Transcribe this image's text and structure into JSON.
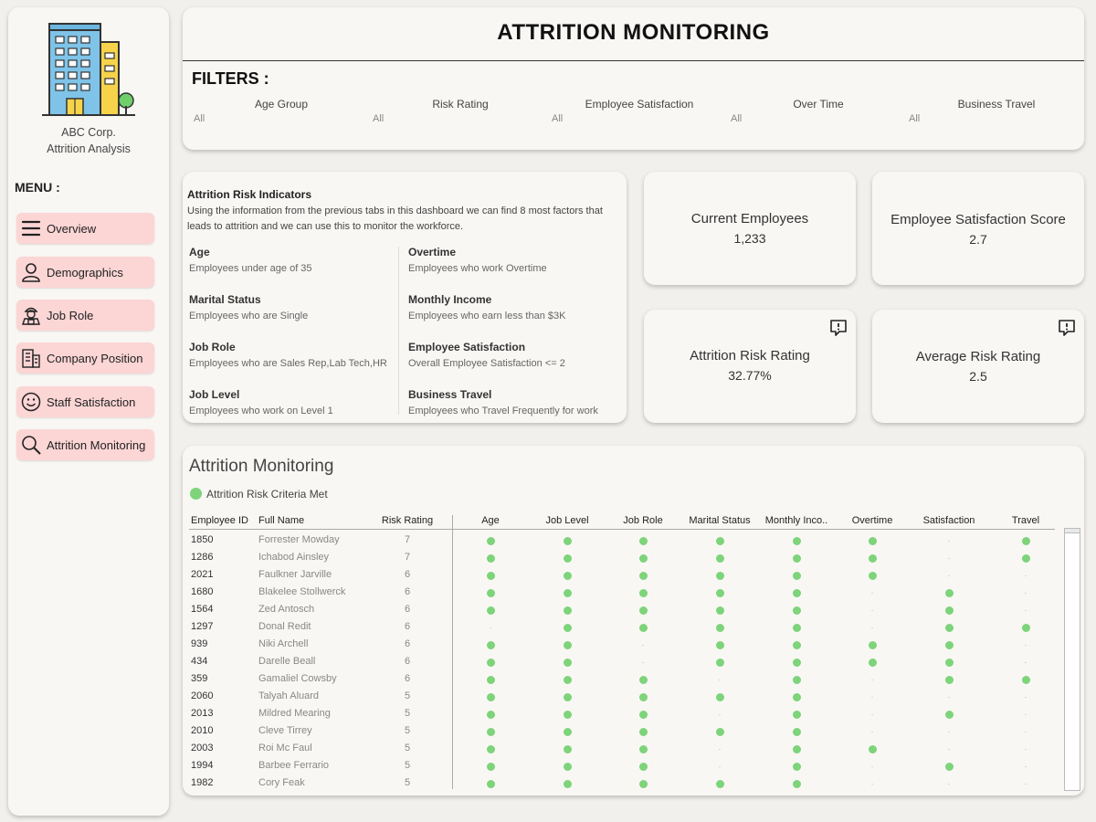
{
  "sidebar": {
    "company_line1": "ABC Corp.",
    "company_line2": "Attrition Analysis",
    "menu_title": "MENU :",
    "items": [
      {
        "label": "Overview",
        "icon": "menu-lines-icon"
      },
      {
        "label": "Demographics",
        "icon": "person-icon"
      },
      {
        "label": "Job Role",
        "icon": "worker-icon"
      },
      {
        "label": "Company Position",
        "icon": "building-icon"
      },
      {
        "label": "Staff Satisfaction",
        "icon": "smile-icon"
      },
      {
        "label": "Attrition Monitoring",
        "icon": "search-icon"
      }
    ]
  },
  "header": {
    "title": "ATTRITION MONITORING",
    "filters_title": "FILTERS :",
    "filters": [
      {
        "label": "Age Group",
        "value": "All"
      },
      {
        "label": "Risk Rating",
        "value": "All"
      },
      {
        "label": "Employee Satisfaction",
        "value": "All"
      },
      {
        "label": "Over Time",
        "value": "All"
      },
      {
        "label": "Business Travel",
        "value": "All"
      }
    ]
  },
  "risk_indicators": {
    "title": "Attrition Risk Indicators",
    "description": "Using the information from the previous tabs in this dashboard we can find 8 most factors that leads to attrition and we can use this to monitor the workforce.",
    "left": [
      {
        "name": "Age",
        "desc": "Employees under age of 35"
      },
      {
        "name": "Marital Status",
        "desc": "Employees who are Single"
      },
      {
        "name": "Job Role",
        "desc": "Employees who are Sales Rep,Lab Tech,HR"
      },
      {
        "name": "Job Level",
        "desc": "Employees who work on Level 1"
      }
    ],
    "right": [
      {
        "name": "Overtime",
        "desc": "Employees who work Overtime"
      },
      {
        "name": "Monthly Income",
        "desc": "Employees who earn less than $3K"
      },
      {
        "name": "Employee Satisfaction",
        "desc": "Overall Employee Satisfaction <= 2"
      },
      {
        "name": "Business Travel",
        "desc": "Employees who Travel Frequently for work"
      }
    ]
  },
  "kpis": {
    "current_employees": {
      "label": "Current Employees",
      "value": "1,233"
    },
    "satisfaction_score": {
      "label": "Employee Satisfaction Score",
      "value": "2.7"
    },
    "attrition_risk": {
      "label": "Attrition Risk Rating",
      "value": "32.77%"
    },
    "average_risk": {
      "label": "Average Risk Rating",
      "value": "2.5"
    }
  },
  "monitor": {
    "title": "Attrition Monitoring",
    "legend": "Attrition Risk Criteria Met",
    "dot_color": "#7dd47a",
    "columns": [
      "Employee ID",
      "Full Name",
      "Risk Rating",
      "Age",
      "Job Level",
      "Job Role",
      "Marital Status",
      "Monthly Inco..",
      "Overtime",
      "Satisfaction",
      "Travel"
    ],
    "rows": [
      {
        "id": "1850",
        "name": "Forrester Mowday",
        "risk": "7",
        "flags": [
          1,
          1,
          1,
          1,
          1,
          1,
          0,
          1
        ]
      },
      {
        "id": "1286",
        "name": "Ichabod Ainsley",
        "risk": "7",
        "flags": [
          1,
          1,
          1,
          1,
          1,
          1,
          0,
          1
        ]
      },
      {
        "id": "2021",
        "name": "Faulkner Jarville",
        "risk": "6",
        "flags": [
          1,
          1,
          1,
          1,
          1,
          1,
          0,
          0
        ]
      },
      {
        "id": "1680",
        "name": "Blakelee Stollwerck",
        "risk": "6",
        "flags": [
          1,
          1,
          1,
          1,
          1,
          0,
          1,
          0
        ]
      },
      {
        "id": "1564",
        "name": "Zed Antosch",
        "risk": "6",
        "flags": [
          1,
          1,
          1,
          1,
          1,
          0,
          1,
          0
        ]
      },
      {
        "id": "1297",
        "name": "Donal Redit",
        "risk": "6",
        "flags": [
          0,
          1,
          1,
          1,
          1,
          0,
          1,
          1
        ]
      },
      {
        "id": "939",
        "name": "Niki Archell",
        "risk": "6",
        "flags": [
          1,
          1,
          0,
          1,
          1,
          1,
          1,
          0
        ]
      },
      {
        "id": "434",
        "name": "Darelle Beall",
        "risk": "6",
        "flags": [
          1,
          1,
          0,
          1,
          1,
          1,
          1,
          0
        ]
      },
      {
        "id": "359",
        "name": "Gamaliel Cowsby",
        "risk": "6",
        "flags": [
          1,
          1,
          1,
          0,
          1,
          0,
          1,
          1
        ]
      },
      {
        "id": "2060",
        "name": "Talyah Aluard",
        "risk": "5",
        "flags": [
          1,
          1,
          1,
          1,
          1,
          0,
          0,
          0
        ]
      },
      {
        "id": "2013",
        "name": "Mildred Mearing",
        "risk": "5",
        "flags": [
          1,
          1,
          1,
          0,
          1,
          0,
          1,
          0
        ]
      },
      {
        "id": "2010",
        "name": "Cleve Tirrey",
        "risk": "5",
        "flags": [
          1,
          1,
          1,
          1,
          1,
          0,
          0,
          0
        ]
      },
      {
        "id": "2003",
        "name": "Roi Mc Faul",
        "risk": "5",
        "flags": [
          1,
          1,
          1,
          0,
          1,
          1,
          0,
          0
        ]
      },
      {
        "id": "1994",
        "name": "Barbee Ferrario",
        "risk": "5",
        "flags": [
          1,
          1,
          1,
          0,
          1,
          0,
          1,
          0
        ]
      },
      {
        "id": "1982",
        "name": "Cory Feak",
        "risk": "5",
        "flags": [
          1,
          1,
          1,
          1,
          1,
          0,
          0,
          0
        ]
      }
    ]
  }
}
